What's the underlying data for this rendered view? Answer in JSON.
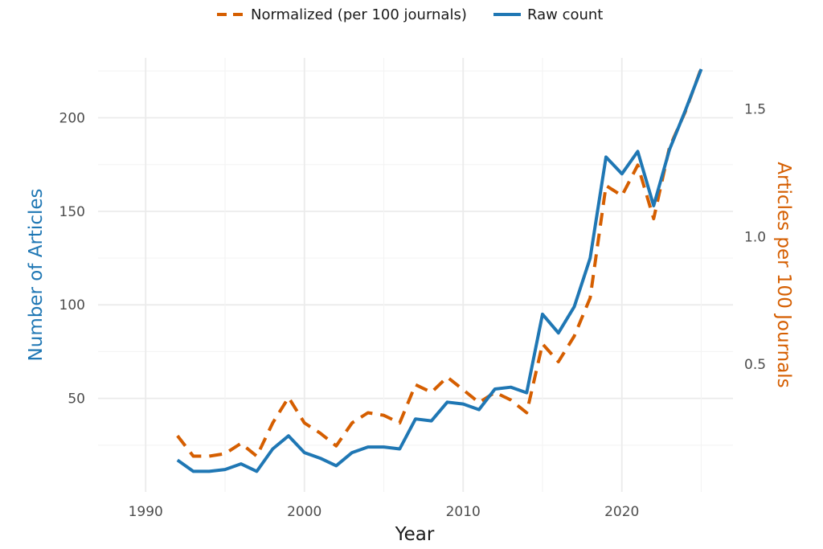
{
  "chart_data": {
    "type": "line",
    "xlabel": "Year",
    "ylabel": "Number of Articles",
    "ylabel_right": "Articles per 100 Journals",
    "xlim": [
      1987,
      2027
    ],
    "ylim": [
      0,
      232
    ],
    "ylim_right": [
      0,
      1.7
    ],
    "x_ticks": [
      1990,
      2000,
      2010,
      2020
    ],
    "y_ticks": [
      50,
      100,
      150,
      200
    ],
    "y_ticks_right": [
      0.5,
      1.0,
      1.5
    ],
    "legend_position": "top",
    "grid": true,
    "colors": {
      "raw": "#1f77b4",
      "normalized": "#d55e00",
      "left_axis_title": "#1f77b4",
      "right_axis_title": "#d55e00"
    },
    "legend": [
      {
        "name": "Normalized (per 100 journals)",
        "style": "dashed",
        "color": "#d55e00"
      },
      {
        "name": "Raw count",
        "style": "solid",
        "color": "#1f77b4"
      }
    ],
    "x": [
      1992,
      1993,
      1994,
      1995,
      1996,
      1997,
      1998,
      1999,
      2000,
      2001,
      2002,
      2003,
      2004,
      2005,
      2006,
      2007,
      2008,
      2009,
      2010,
      2011,
      2012,
      2013,
      2014,
      2015,
      2016,
      2017,
      2018,
      2019,
      2020,
      2021,
      2022,
      2023,
      2024,
      2025
    ],
    "series": [
      {
        "name": "Raw count",
        "axis": "left",
        "values": [
          17,
          11,
          11,
          12,
          15,
          11,
          23,
          30,
          21,
          18,
          14,
          21,
          24,
          24,
          23,
          39,
          38,
          48,
          47,
          44,
          55,
          56,
          53,
          95,
          85,
          99,
          125,
          179,
          170,
          182,
          153,
          183,
          204,
          226
        ]
      },
      {
        "name": "Normalized (per 100 journals)",
        "axis": "right",
        "values": [
          0.22,
          0.14,
          0.14,
          0.15,
          0.19,
          0.14,
          0.27,
          0.37,
          0.27,
          0.23,
          0.18,
          0.27,
          0.31,
          0.3,
          0.27,
          0.42,
          0.39,
          0.45,
          0.4,
          0.35,
          0.39,
          0.36,
          0.31,
          0.58,
          0.51,
          0.61,
          0.76,
          1.2,
          1.16,
          1.28,
          1.07,
          1.35,
          1.49,
          1.66
        ]
      }
    ]
  }
}
